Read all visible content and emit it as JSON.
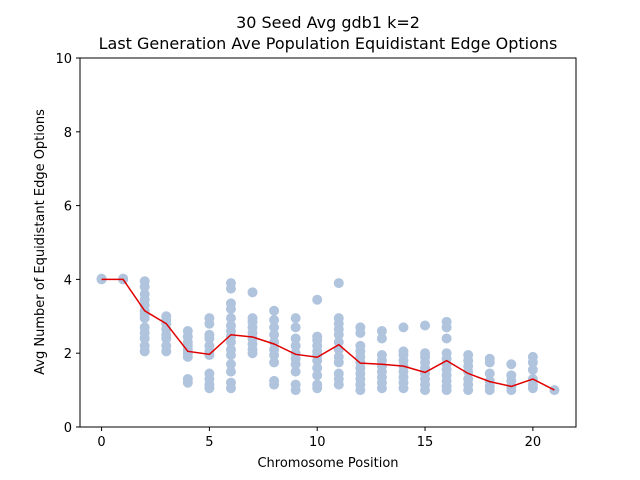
{
  "chart_data": {
    "type": "scatter",
    "title": "30 Seed Avg gdb1 k=2",
    "subtitle": "Last Generation Ave Population Equidistant Edge Options",
    "xlabel": "Chromosome Position",
    "ylabel": "Avg Number of Equidistant Edge Options",
    "xlim": [
      -1,
      22
    ],
    "ylim": [
      0,
      10
    ],
    "xticks": [
      "0",
      "5",
      "10",
      "15",
      "20"
    ],
    "yticks": [
      "0",
      "2",
      "4",
      "6",
      "8",
      "10"
    ],
    "grid": false,
    "legend": "none",
    "colors": {
      "scatter": "#b0c4de",
      "line": "#e00000"
    },
    "series": [
      {
        "kind": "scatter",
        "points": [
          [
            0,
            4.0
          ],
          [
            0,
            4.02
          ],
          [
            1,
            4.0
          ],
          [
            1,
            4.02
          ],
          [
            2,
            2.05
          ],
          [
            2,
            2.2
          ],
          [
            2,
            2.4
          ],
          [
            2,
            2.55
          ],
          [
            2,
            2.7
          ],
          [
            2,
            2.95
          ],
          [
            2,
            3.05
          ],
          [
            2,
            3.15
          ],
          [
            2,
            3.3
          ],
          [
            2,
            3.45
          ],
          [
            2,
            3.6
          ],
          [
            2,
            3.8
          ],
          [
            2,
            3.95
          ],
          [
            3,
            2.05
          ],
          [
            3,
            2.2
          ],
          [
            3,
            2.4
          ],
          [
            3,
            2.5
          ],
          [
            3,
            2.65
          ],
          [
            3,
            2.8
          ],
          [
            3,
            2.9
          ],
          [
            3,
            3.0
          ],
          [
            4,
            1.2
          ],
          [
            4,
            1.3
          ],
          [
            4,
            1.9
          ],
          [
            4,
            2.0
          ],
          [
            4,
            2.1
          ],
          [
            4,
            2.2
          ],
          [
            4,
            2.3
          ],
          [
            4,
            2.45
          ],
          [
            4,
            2.6
          ],
          [
            5,
            1.05
          ],
          [
            5,
            1.15
          ],
          [
            5,
            1.3
          ],
          [
            5,
            1.45
          ],
          [
            5,
            1.95
          ],
          [
            5,
            2.05
          ],
          [
            5,
            2.2
          ],
          [
            5,
            2.4
          ],
          [
            5,
            2.5
          ],
          [
            5,
            2.8
          ],
          [
            5,
            2.95
          ],
          [
            6,
            1.05
          ],
          [
            6,
            1.2
          ],
          [
            6,
            1.5
          ],
          [
            6,
            1.7
          ],
          [
            6,
            1.95
          ],
          [
            6,
            2.1
          ],
          [
            6,
            2.3
          ],
          [
            6,
            2.45
          ],
          [
            6,
            2.6
          ],
          [
            6,
            2.75
          ],
          [
            6,
            2.95
          ],
          [
            6,
            3.2
          ],
          [
            6,
            3.35
          ],
          [
            6,
            3.75
          ],
          [
            6,
            3.9
          ],
          [
            7,
            2.0
          ],
          [
            7,
            2.1
          ],
          [
            7,
            2.25
          ],
          [
            7,
            2.4
          ],
          [
            7,
            2.55
          ],
          [
            7,
            2.7
          ],
          [
            7,
            2.85
          ],
          [
            7,
            2.95
          ],
          [
            7,
            3.65
          ],
          [
            8,
            1.15
          ],
          [
            8,
            1.25
          ],
          [
            8,
            1.75
          ],
          [
            8,
            1.95
          ],
          [
            8,
            2.1
          ],
          [
            8,
            2.3
          ],
          [
            8,
            2.5
          ],
          [
            8,
            2.7
          ],
          [
            8,
            2.9
          ],
          [
            8,
            3.15
          ],
          [
            9,
            1.0
          ],
          [
            9,
            1.15
          ],
          [
            9,
            1.5
          ],
          [
            9,
            1.7
          ],
          [
            9,
            1.85
          ],
          [
            9,
            2.0
          ],
          [
            9,
            2.2
          ],
          [
            9,
            2.4
          ],
          [
            9,
            2.7
          ],
          [
            9,
            2.95
          ],
          [
            10,
            1.05
          ],
          [
            10,
            1.15
          ],
          [
            10,
            1.4
          ],
          [
            10,
            1.6
          ],
          [
            10,
            1.8
          ],
          [
            10,
            1.95
          ],
          [
            10,
            2.05
          ],
          [
            10,
            2.2
          ],
          [
            10,
            2.35
          ],
          [
            10,
            2.45
          ],
          [
            10,
            3.45
          ],
          [
            11,
            1.15
          ],
          [
            11,
            1.3
          ],
          [
            11,
            1.45
          ],
          [
            11,
            1.75
          ],
          [
            11,
            1.9
          ],
          [
            11,
            2.1
          ],
          [
            11,
            2.3
          ],
          [
            11,
            2.5
          ],
          [
            11,
            2.65
          ],
          [
            11,
            2.8
          ],
          [
            11,
            2.95
          ],
          [
            11,
            3.9
          ],
          [
            12,
            1.0
          ],
          [
            12,
            1.15
          ],
          [
            12,
            1.3
          ],
          [
            12,
            1.45
          ],
          [
            12,
            1.6
          ],
          [
            12,
            1.75
          ],
          [
            12,
            1.9
          ],
          [
            12,
            2.05
          ],
          [
            12,
            2.2
          ],
          [
            12,
            2.55
          ],
          [
            12,
            2.7
          ],
          [
            13,
            1.05
          ],
          [
            13,
            1.2
          ],
          [
            13,
            1.35
          ],
          [
            13,
            1.5
          ],
          [
            13,
            1.65
          ],
          [
            13,
            1.8
          ],
          [
            13,
            1.95
          ],
          [
            13,
            2.4
          ],
          [
            13,
            2.6
          ],
          [
            14,
            1.05
          ],
          [
            14,
            1.2
          ],
          [
            14,
            1.35
          ],
          [
            14,
            1.5
          ],
          [
            14,
            1.65
          ],
          [
            14,
            1.8
          ],
          [
            14,
            1.95
          ],
          [
            14,
            2.05
          ],
          [
            14,
            2.7
          ],
          [
            15,
            1.0
          ],
          [
            15,
            1.15
          ],
          [
            15,
            1.3
          ],
          [
            15,
            1.45
          ],
          [
            15,
            1.6
          ],
          [
            15,
            1.75
          ],
          [
            15,
            1.9
          ],
          [
            15,
            2.0
          ],
          [
            15,
            2.75
          ],
          [
            16,
            1.0
          ],
          [
            16,
            1.1
          ],
          [
            16,
            1.25
          ],
          [
            16,
            1.4
          ],
          [
            16,
            1.55
          ],
          [
            16,
            1.7
          ],
          [
            16,
            1.85
          ],
          [
            16,
            2.0
          ],
          [
            16,
            2.4
          ],
          [
            16,
            2.7
          ],
          [
            16,
            2.85
          ],
          [
            17,
            1.0
          ],
          [
            17,
            1.15
          ],
          [
            17,
            1.3
          ],
          [
            17,
            1.5
          ],
          [
            17,
            1.65
          ],
          [
            17,
            1.8
          ],
          [
            17,
            1.95
          ],
          [
            18,
            1.0
          ],
          [
            18,
            1.1
          ],
          [
            18,
            1.25
          ],
          [
            18,
            1.45
          ],
          [
            18,
            1.75
          ],
          [
            18,
            1.85
          ],
          [
            19,
            1.0
          ],
          [
            19,
            1.1
          ],
          [
            19,
            1.25
          ],
          [
            19,
            1.4
          ],
          [
            19,
            1.7
          ],
          [
            20,
            1.05
          ],
          [
            20,
            1.15
          ],
          [
            20,
            1.3
          ],
          [
            20,
            1.55
          ],
          [
            20,
            1.75
          ],
          [
            20,
            1.9
          ],
          [
            21,
            1.0
          ]
        ]
      },
      {
        "kind": "line",
        "x": [
          0,
          1,
          2,
          3,
          4,
          5,
          6,
          7,
          8,
          9,
          10,
          11,
          12,
          13,
          14,
          15,
          16,
          17,
          18,
          19,
          20,
          21
        ],
        "y": [
          4.0,
          4.0,
          3.15,
          2.8,
          2.05,
          1.97,
          2.5,
          2.44,
          2.25,
          1.97,
          1.89,
          2.23,
          1.73,
          1.7,
          1.65,
          1.48,
          1.8,
          1.45,
          1.23,
          1.1,
          1.3,
          1.0
        ]
      }
    ]
  }
}
